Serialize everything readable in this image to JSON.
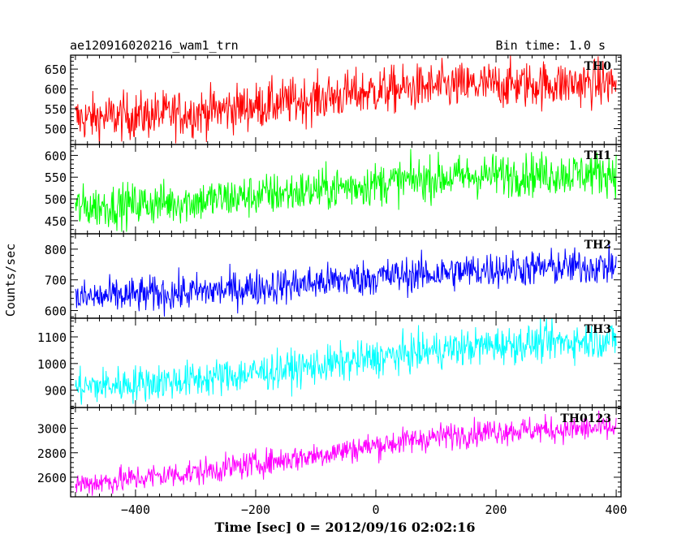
{
  "chart_data": {
    "type": "line",
    "title": "ae120916020216_wam1_trn",
    "bin_time": "Bin time: 1.0 s",
    "xlabel": "Time [sec] 0 = 2012/09/16 02:02:16",
    "ylabel": "Counts/sec",
    "xlim": [
      -508,
      408
    ],
    "xticks": [
      -400,
      -200,
      0,
      200,
      400
    ],
    "x_range": [
      -500,
      400
    ],
    "grid": false,
    "panels": [
      {
        "name": "TH0",
        "color": "#ff0000",
        "ylim": [
          460,
          685
        ],
        "yticks": [
          500,
          550,
          600,
          650
        ],
        "trend": [
          [
            -500,
            525
          ],
          [
            -300,
            540
          ],
          [
            -100,
            575
          ],
          [
            0,
            595
          ],
          [
            100,
            605
          ],
          [
            200,
            610
          ],
          [
            400,
            615
          ]
        ],
        "noise": 30
      },
      {
        "name": "TH1",
        "color": "#00ff00",
        "ylim": [
          420,
          625
        ],
        "yticks": [
          450,
          500,
          550,
          600
        ],
        "trend": [
          [
            -500,
            480
          ],
          [
            -300,
            495
          ],
          [
            -100,
            520
          ],
          [
            0,
            535
          ],
          [
            100,
            548
          ],
          [
            200,
            555
          ],
          [
            400,
            560
          ]
        ],
        "noise": 25
      },
      {
        "name": "TH2",
        "color": "#0000ff",
        "ylim": [
          575,
          850
        ],
        "yticks": [
          600,
          700,
          800
        ],
        "trend": [
          [
            -500,
            640
          ],
          [
            -300,
            660
          ],
          [
            -100,
            690
          ],
          [
            0,
            710
          ],
          [
            100,
            720
          ],
          [
            200,
            735
          ],
          [
            400,
            745
          ]
        ],
        "noise": 30
      },
      {
        "name": "TH3",
        "color": "#00ffff",
        "ylim": [
          835,
          1170
        ],
        "yticks": [
          900,
          1000,
          1100
        ],
        "trend": [
          [
            -500,
            910
          ],
          [
            -300,
            940
          ],
          [
            -100,
            990
          ],
          [
            0,
            1020
          ],
          [
            100,
            1050
          ],
          [
            200,
            1070
          ],
          [
            400,
            1090
          ]
        ],
        "noise": 35
      },
      {
        "name": "TH0123",
        "color": "#ff00ff",
        "ylim": [
          2440,
          3170
        ],
        "yticks": [
          2600,
          2800,
          3000
        ],
        "trend": [
          [
            -500,
            2540
          ],
          [
            -300,
            2640
          ],
          [
            -100,
            2780
          ],
          [
            0,
            2860
          ],
          [
            100,
            2930
          ],
          [
            200,
            2980
          ],
          [
            400,
            3000
          ]
        ],
        "noise": 55
      }
    ]
  }
}
